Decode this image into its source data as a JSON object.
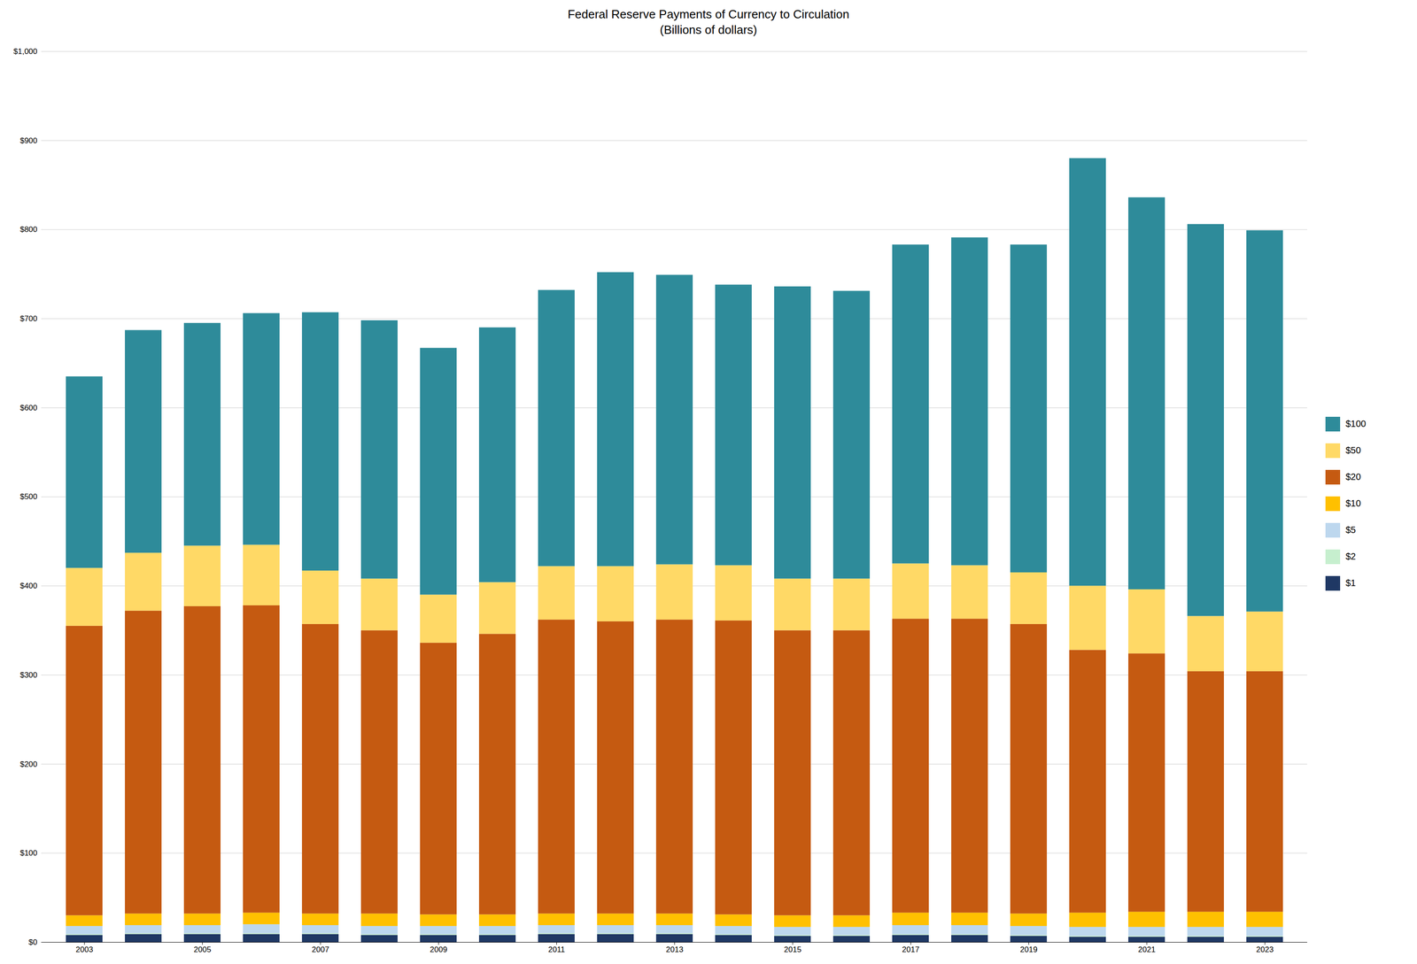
{
  "chart_data": {
    "type": "bar",
    "title": "Federal Reserve Payments of Currency to Circulation\n(Billions of dollars)",
    "categories": [
      "2003",
      null,
      "2005",
      null,
      "2007",
      null,
      "2009",
      null,
      "2011",
      null,
      "2013",
      null,
      "2015",
      null,
      "2017",
      null,
      "2019",
      null,
      "2021",
      null,
      "2023"
    ],
    "series": [
      {
        "name": "$1",
        "color": "#1f3864",
        "values": [
          8,
          9,
          9,
          9,
          9,
          8,
          8,
          8,
          9,
          9,
          9,
          8,
          7,
          7,
          8,
          8,
          7,
          6,
          6,
          6,
          6
        ]
      },
      {
        "name": "$2",
        "color": "#c6efce",
        "values": [
          1,
          1,
          1,
          1,
          1,
          1,
          1,
          1,
          1,
          1,
          1,
          1,
          1,
          1,
          1,
          1,
          1,
          1,
          1,
          1,
          1
        ]
      },
      {
        "name": "$5",
        "color": "#bdd7ee",
        "values": [
          9,
          9,
          9,
          10,
          9,
          9,
          9,
          9,
          9,
          9,
          9,
          9,
          9,
          9,
          10,
          10,
          10,
          10,
          10,
          10,
          10
        ]
      },
      {
        "name": "$10",
        "color": "#ffc000",
        "values": [
          12,
          13,
          13,
          13,
          13,
          14,
          13,
          13,
          13,
          13,
          13,
          13,
          13,
          13,
          14,
          14,
          14,
          16,
          17,
          17,
          17
        ]
      },
      {
        "name": "$20",
        "color": "#c55a11",
        "values": [
          325,
          340,
          345,
          345,
          325,
          318,
          305,
          315,
          330,
          328,
          330,
          330,
          320,
          320,
          330,
          330,
          325,
          295,
          290,
          270,
          270
        ]
      },
      {
        "name": "$50",
        "color": "#ffd966",
        "values": [
          65,
          65,
          68,
          68,
          60,
          58,
          54,
          58,
          60,
          62,
          62,
          62,
          58,
          58,
          62,
          60,
          58,
          72,
          72,
          62,
          67
        ]
      },
      {
        "name": "$100",
        "color": "#2e8b9a",
        "values": [
          215,
          250,
          250,
          260,
          290,
          290,
          277,
          286,
          310,
          330,
          325,
          315,
          328,
          323,
          358,
          368,
          368,
          480,
          440,
          440,
          428
        ]
      }
    ],
    "stacked": true,
    "ylim": [
      0,
      1000
    ],
    "yticks": [
      {
        "value": 0,
        "label": "$0"
      },
      {
        "value": 100,
        "label": "$100"
      },
      {
        "value": 200,
        "label": "$200"
      },
      {
        "value": 300,
        "label": "$300"
      },
      {
        "value": 400,
        "label": "$400"
      },
      {
        "value": 500,
        "label": "$500"
      },
      {
        "value": 600,
        "label": "$600"
      },
      {
        "value": 700,
        "label": "$700"
      },
      {
        "value": 800,
        "label": "$800"
      },
      {
        "value": 900,
        "label": "$900"
      },
      {
        "value": 1000,
        "label": "$1,000"
      }
    ],
    "grid": true,
    "legend": "right"
  }
}
